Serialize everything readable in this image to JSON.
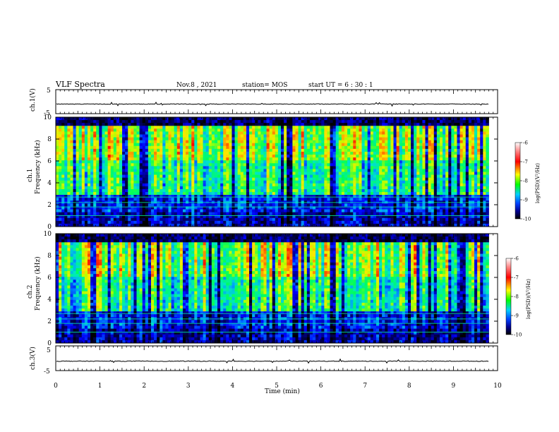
{
  "header": {
    "title": "VLF Spectra",
    "date": "Nov.8  , 2021",
    "station": "station= MOS",
    "start_ut": "start  UT  =   6  : 30 : 1"
  },
  "colors": {
    "spectrogram_low": "#000060",
    "spectrogram_mid": "#00ff80",
    "spectrogram_high": "#ff0000",
    "colorbar": [
      "#ffffff",
      "#ff6060",
      "#ff0000",
      "#ffff00",
      "#00ff00",
      "#00c0ff",
      "#0000ff",
      "#000080",
      "#000000"
    ]
  },
  "chart_data": [
    {
      "type": "line",
      "panel": "ch1-voltage",
      "ylabel": "ch.1(V)",
      "ylim": [
        -5,
        5
      ],
      "y_ticks": [
        "5",
        "-5"
      ],
      "xlim": [
        0,
        10
      ],
      "series_level_approx": -1.0
    },
    {
      "type": "heatmap",
      "panel": "ch1-spectrogram",
      "ylabel": "ch.1\nFrequency (kHz)",
      "ylabel_line1": "ch.1",
      "ylabel_line2": "Frequency (kHz)",
      "ylim": [
        0,
        10
      ],
      "y_ticks": [
        "0",
        "2",
        "4",
        "6",
        "8",
        "10"
      ],
      "xlim": [
        0,
        10
      ],
      "data_extent_min": 9.8,
      "colorbar": {
        "label": "log(PSD)(V²/Hz)",
        "range": [
          -10,
          -6
        ],
        "ticks": [
          "-6",
          "-7",
          "-8",
          "-9",
          "-10"
        ]
      }
    },
    {
      "type": "heatmap",
      "panel": "ch2-spectrogram",
      "ylabel": "ch.2\nFrequency (kHz)",
      "ylabel_line1": "ch.2",
      "ylabel_line2": "Frequency (kHz)",
      "ylim": [
        0,
        10
      ],
      "y_ticks": [
        "0",
        "2",
        "4",
        "6",
        "8",
        "10"
      ],
      "xlim": [
        0,
        10
      ],
      "data_extent_min": 9.8,
      "colorbar": {
        "label": "log(PSD)(V²/Hz)",
        "range": [
          -10,
          -6
        ],
        "ticks": [
          "-6",
          "-7",
          "-8",
          "-9",
          "-10"
        ]
      }
    },
    {
      "type": "line",
      "panel": "ch3-voltage",
      "ylabel": "ch.3(V)",
      "ylim": [
        -5,
        5
      ],
      "y_ticks": [
        "5",
        "-5"
      ],
      "xlim": [
        0,
        10
      ],
      "series_level_approx": -1.2
    }
  ],
  "xaxis": {
    "label": "Time  (min)",
    "ticks": [
      "0",
      "1",
      "2",
      "3",
      "4",
      "5",
      "6",
      "7",
      "8",
      "9",
      "10"
    ]
  }
}
